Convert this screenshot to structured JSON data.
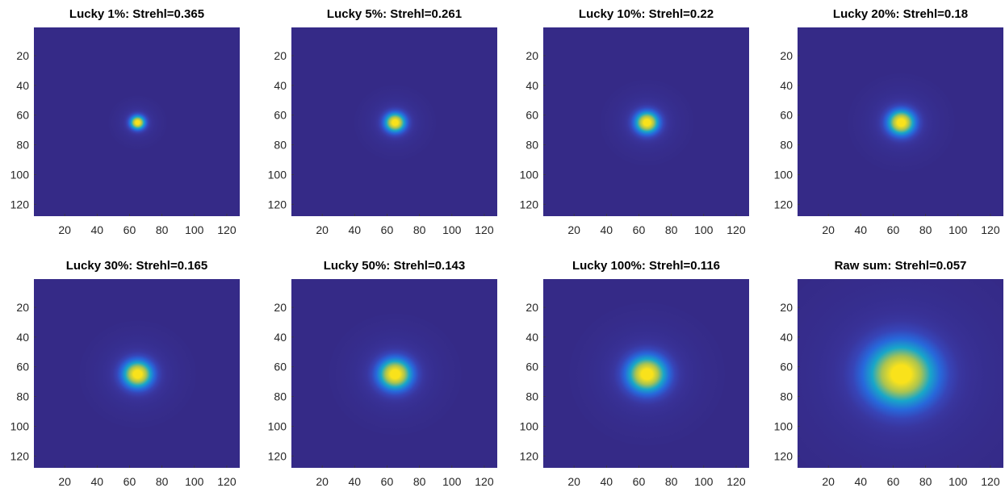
{
  "chart_data": [
    {
      "type": "heatmap",
      "title": "Lucky 1%: Strehl=0.365",
      "strehl": 0.365,
      "peak_width": 3.0,
      "xlim": [
        1,
        128
      ],
      "ylim": [
        1,
        128
      ],
      "y_reversed": true,
      "xticks": [
        20,
        40,
        60,
        80,
        100,
        120
      ],
      "yticks": [
        20,
        40,
        60,
        80,
        100,
        120
      ],
      "peak_center": [
        65,
        65
      ],
      "colormap": "parula"
    },
    {
      "type": "heatmap",
      "title": "Lucky 5%: Strehl=0.261",
      "strehl": 0.261,
      "peak_width": 4.2,
      "xlim": [
        1,
        128
      ],
      "ylim": [
        1,
        128
      ],
      "y_reversed": true,
      "xticks": [
        20,
        40,
        60,
        80,
        100,
        120
      ],
      "yticks": [
        20,
        40,
        60,
        80,
        100,
        120
      ],
      "peak_center": [
        65,
        65
      ],
      "colormap": "parula"
    },
    {
      "type": "heatmap",
      "title": "Lucky 10%: Strehl=0.22",
      "strehl": 0.22,
      "peak_width": 4.8,
      "xlim": [
        1,
        128
      ],
      "ylim": [
        1,
        128
      ],
      "y_reversed": true,
      "xticks": [
        20,
        40,
        60,
        80,
        100,
        120
      ],
      "yticks": [
        20,
        40,
        60,
        80,
        100,
        120
      ],
      "peak_center": [
        65,
        65
      ],
      "colormap": "parula"
    },
    {
      "type": "heatmap",
      "title": "Lucky 20%: Strehl=0.18",
      "strehl": 0.18,
      "peak_width": 5.5,
      "xlim": [
        1,
        128
      ],
      "ylim": [
        1,
        128
      ],
      "y_reversed": true,
      "xticks": [
        20,
        40,
        60,
        80,
        100,
        120
      ],
      "yticks": [
        20,
        40,
        60,
        80,
        100,
        120
      ],
      "peak_center": [
        65,
        65
      ],
      "colormap": "parula"
    },
    {
      "type": "heatmap",
      "title": "Lucky 30%: Strehl=0.165",
      "strehl": 0.165,
      "peak_width": 6.0,
      "xlim": [
        1,
        128
      ],
      "ylim": [
        1,
        128
      ],
      "y_reversed": true,
      "xticks": [
        20,
        40,
        60,
        80,
        100,
        120
      ],
      "yticks": [
        20,
        40,
        60,
        80,
        100,
        120
      ],
      "peak_center": [
        65,
        65
      ],
      "colormap": "parula"
    },
    {
      "type": "heatmap",
      "title": "Lucky 50%: Strehl=0.143",
      "strehl": 0.143,
      "peak_width": 6.8,
      "xlim": [
        1,
        128
      ],
      "ylim": [
        1,
        128
      ],
      "y_reversed": true,
      "xticks": [
        20,
        40,
        60,
        80,
        100,
        120
      ],
      "yticks": [
        20,
        40,
        60,
        80,
        100,
        120
      ],
      "peak_center": [
        65,
        65
      ],
      "colormap": "parula"
    },
    {
      "type": "heatmap",
      "title": "Lucky 100%: Strehl=0.116",
      "strehl": 0.116,
      "peak_width": 8.0,
      "xlim": [
        1,
        128
      ],
      "ylim": [
        1,
        128
      ],
      "y_reversed": true,
      "xticks": [
        20,
        40,
        60,
        80,
        100,
        120
      ],
      "yticks": [
        20,
        40,
        60,
        80,
        100,
        120
      ],
      "peak_center": [
        65,
        65
      ],
      "colormap": "parula"
    },
    {
      "type": "heatmap",
      "title": "Raw sum: Strehl=0.057",
      "strehl": 0.057,
      "peak_width": 14.0,
      "xlim": [
        1,
        128
      ],
      "ylim": [
        1,
        128
      ],
      "y_reversed": true,
      "xticks": [
        20,
        40,
        60,
        80,
        100,
        120
      ],
      "yticks": [
        20,
        40,
        60,
        80,
        100,
        120
      ],
      "peak_center": [
        65,
        65
      ],
      "colormap": "parula"
    }
  ],
  "colors": {
    "background": "#352a87",
    "colormap_stops": [
      "#352a87",
      "#3b3aa8",
      "#2e58d6",
      "#1e7ee3",
      "#12a2d0",
      "#3fbd9c",
      "#9bc65a",
      "#e3bc2c",
      "#f9e21b"
    ]
  }
}
